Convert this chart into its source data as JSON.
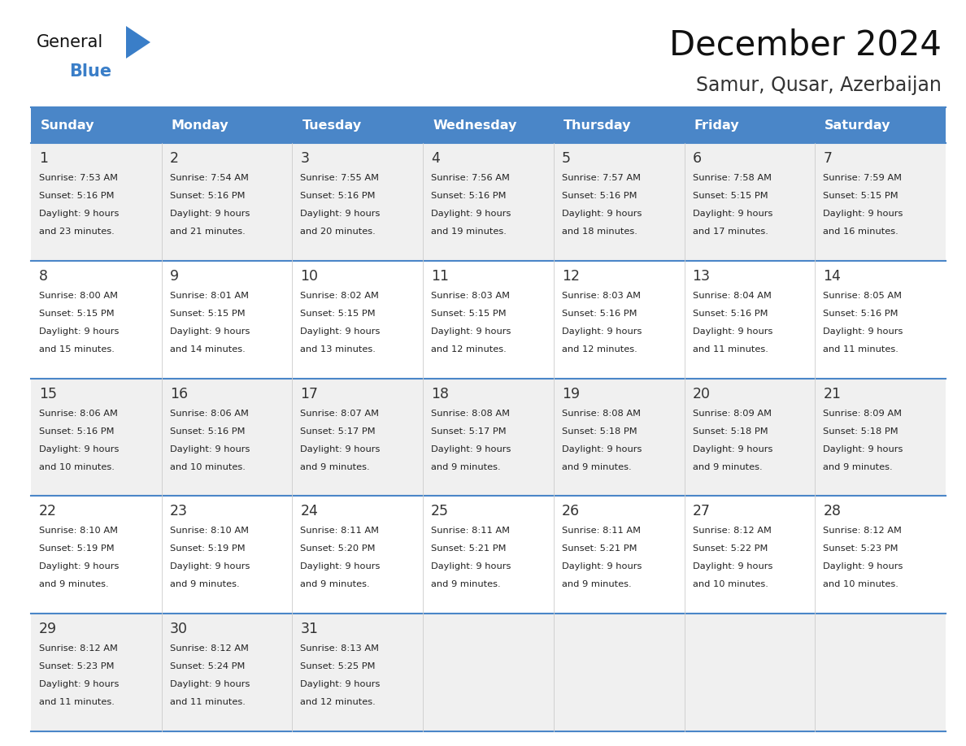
{
  "title": "December 2024",
  "subtitle": "Samur, Qusar, Azerbaijan",
  "days_of_week": [
    "Sunday",
    "Monday",
    "Tuesday",
    "Wednesday",
    "Thursday",
    "Friday",
    "Saturday"
  ],
  "header_bg": "#4a86c8",
  "header_text": "#ffffff",
  "row_bg_odd": "#f0f0f0",
  "row_bg_even": "#ffffff",
  "cell_text_color": "#222222",
  "day_num_color": "#333333",
  "border_color": "#4a86c8",
  "grid_line_color": "#4a86c8",
  "calendar_data": [
    [
      {
        "day": 1,
        "sunrise": "7:53 AM",
        "sunset": "5:16 PM",
        "daylight": "9 hours and 23 minutes"
      },
      {
        "day": 2,
        "sunrise": "7:54 AM",
        "sunset": "5:16 PM",
        "daylight": "9 hours and 21 minutes"
      },
      {
        "day": 3,
        "sunrise": "7:55 AM",
        "sunset": "5:16 PM",
        "daylight": "9 hours and 20 minutes"
      },
      {
        "day": 4,
        "sunrise": "7:56 AM",
        "sunset": "5:16 PM",
        "daylight": "9 hours and 19 minutes"
      },
      {
        "day": 5,
        "sunrise": "7:57 AM",
        "sunset": "5:16 PM",
        "daylight": "9 hours and 18 minutes"
      },
      {
        "day": 6,
        "sunrise": "7:58 AM",
        "sunset": "5:15 PM",
        "daylight": "9 hours and 17 minutes"
      },
      {
        "day": 7,
        "sunrise": "7:59 AM",
        "sunset": "5:15 PM",
        "daylight": "9 hours and 16 minutes"
      }
    ],
    [
      {
        "day": 8,
        "sunrise": "8:00 AM",
        "sunset": "5:15 PM",
        "daylight": "9 hours and 15 minutes"
      },
      {
        "day": 9,
        "sunrise": "8:01 AM",
        "sunset": "5:15 PM",
        "daylight": "9 hours and 14 minutes"
      },
      {
        "day": 10,
        "sunrise": "8:02 AM",
        "sunset": "5:15 PM",
        "daylight": "9 hours and 13 minutes"
      },
      {
        "day": 11,
        "sunrise": "8:03 AM",
        "sunset": "5:15 PM",
        "daylight": "9 hours and 12 minutes"
      },
      {
        "day": 12,
        "sunrise": "8:03 AM",
        "sunset": "5:16 PM",
        "daylight": "9 hours and 12 minutes"
      },
      {
        "day": 13,
        "sunrise": "8:04 AM",
        "sunset": "5:16 PM",
        "daylight": "9 hours and 11 minutes"
      },
      {
        "day": 14,
        "sunrise": "8:05 AM",
        "sunset": "5:16 PM",
        "daylight": "9 hours and 11 minutes"
      }
    ],
    [
      {
        "day": 15,
        "sunrise": "8:06 AM",
        "sunset": "5:16 PM",
        "daylight": "9 hours and 10 minutes"
      },
      {
        "day": 16,
        "sunrise": "8:06 AM",
        "sunset": "5:16 PM",
        "daylight": "9 hours and 10 minutes"
      },
      {
        "day": 17,
        "sunrise": "8:07 AM",
        "sunset": "5:17 PM",
        "daylight": "9 hours and 9 minutes"
      },
      {
        "day": 18,
        "sunrise": "8:08 AM",
        "sunset": "5:17 PM",
        "daylight": "9 hours and 9 minutes"
      },
      {
        "day": 19,
        "sunrise": "8:08 AM",
        "sunset": "5:18 PM",
        "daylight": "9 hours and 9 minutes"
      },
      {
        "day": 20,
        "sunrise": "8:09 AM",
        "sunset": "5:18 PM",
        "daylight": "9 hours and 9 minutes"
      },
      {
        "day": 21,
        "sunrise": "8:09 AM",
        "sunset": "5:18 PM",
        "daylight": "9 hours and 9 minutes"
      }
    ],
    [
      {
        "day": 22,
        "sunrise": "8:10 AM",
        "sunset": "5:19 PM",
        "daylight": "9 hours and 9 minutes"
      },
      {
        "day": 23,
        "sunrise": "8:10 AM",
        "sunset": "5:19 PM",
        "daylight": "9 hours and 9 minutes"
      },
      {
        "day": 24,
        "sunrise": "8:11 AM",
        "sunset": "5:20 PM",
        "daylight": "9 hours and 9 minutes"
      },
      {
        "day": 25,
        "sunrise": "8:11 AM",
        "sunset": "5:21 PM",
        "daylight": "9 hours and 9 minutes"
      },
      {
        "day": 26,
        "sunrise": "8:11 AM",
        "sunset": "5:21 PM",
        "daylight": "9 hours and 9 minutes"
      },
      {
        "day": 27,
        "sunrise": "8:12 AM",
        "sunset": "5:22 PM",
        "daylight": "9 hours and 10 minutes"
      },
      {
        "day": 28,
        "sunrise": "8:12 AM",
        "sunset": "5:23 PM",
        "daylight": "9 hours and 10 minutes"
      }
    ],
    [
      {
        "day": 29,
        "sunrise": "8:12 AM",
        "sunset": "5:23 PM",
        "daylight": "9 hours and 11 minutes"
      },
      {
        "day": 30,
        "sunrise": "8:12 AM",
        "sunset": "5:24 PM",
        "daylight": "9 hours and 11 minutes"
      },
      {
        "day": 31,
        "sunrise": "8:13 AM",
        "sunset": "5:25 PM",
        "daylight": "9 hours and 12 minutes"
      },
      null,
      null,
      null,
      null
    ]
  ]
}
